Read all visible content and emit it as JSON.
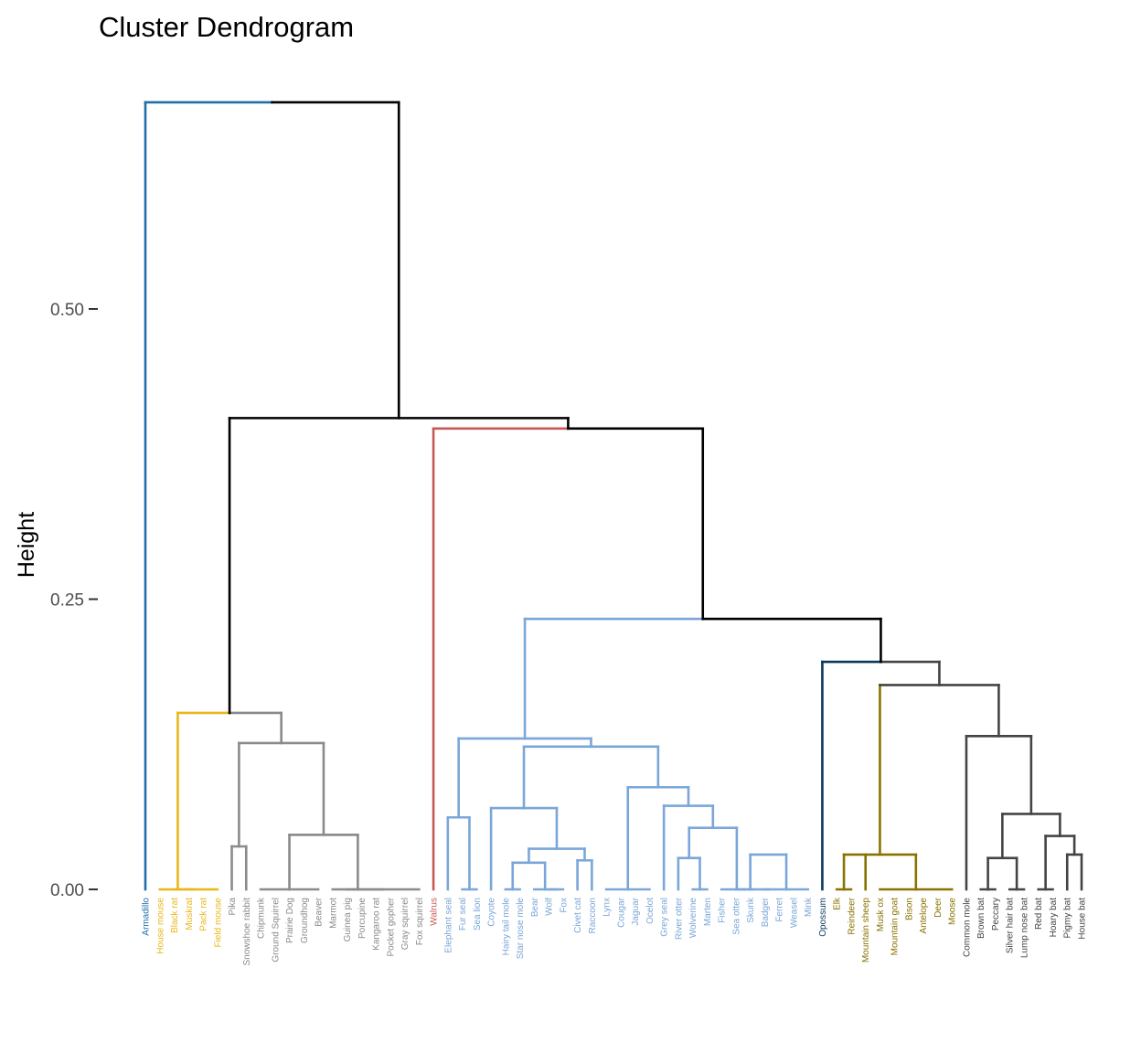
{
  "chart_data": {
    "type": "dendrogram",
    "title": "Cluster Dendrogram",
    "ylabel": "Height",
    "xlabel": "",
    "ylim": [
      0,
      0.68
    ],
    "yticks": [
      {
        "value": 0.0,
        "label": "0.00"
      },
      {
        "value": 0.25,
        "label": "0.25"
      },
      {
        "value": 0.5,
        "label": "0.50"
      }
    ],
    "colors": {
      "c1": "#1f6fa8",
      "c2": "#e8b81a",
      "c3": "#8a8a8a",
      "c4": "#c85a55",
      "c5": "#7aa6d8",
      "c6": "#0b3a5e",
      "c7": "#8a7200",
      "c8": "#444444",
      "root": "#000000"
    },
    "leaves": [
      {
        "label": "Armadillo",
        "cluster": "c1"
      },
      {
        "label": "House mouse",
        "cluster": "c2"
      },
      {
        "label": "Black rat",
        "cluster": "c2"
      },
      {
        "label": "Muskrat",
        "cluster": "c2"
      },
      {
        "label": "Pack rat",
        "cluster": "c2"
      },
      {
        "label": "Field mouse",
        "cluster": "c2"
      },
      {
        "label": "Pika",
        "cluster": "c3"
      },
      {
        "label": "Snowshoe rabbit",
        "cluster": "c3"
      },
      {
        "label": "Chipmunk",
        "cluster": "c3"
      },
      {
        "label": "Ground Squirrel",
        "cluster": "c3"
      },
      {
        "label": "Prairie Dog",
        "cluster": "c3"
      },
      {
        "label": "Groundhog",
        "cluster": "c3"
      },
      {
        "label": "Beaver",
        "cluster": "c3"
      },
      {
        "label": "Marmot",
        "cluster": "c3"
      },
      {
        "label": "Guinea pig",
        "cluster": "c3"
      },
      {
        "label": "Porcupine",
        "cluster": "c3"
      },
      {
        "label": "Kangaroo rat",
        "cluster": "c3"
      },
      {
        "label": "Pocket gopher",
        "cluster": "c3"
      },
      {
        "label": "Gray squirrel",
        "cluster": "c3"
      },
      {
        "label": "Fox squirrel",
        "cluster": "c3"
      },
      {
        "label": "Walrus",
        "cluster": "c4"
      },
      {
        "label": "Elephant seal",
        "cluster": "c5"
      },
      {
        "label": "Fur seal",
        "cluster": "c5"
      },
      {
        "label": "Sea lion",
        "cluster": "c5"
      },
      {
        "label": "Coyote",
        "cluster": "c5"
      },
      {
        "label": "Hairy tail mole",
        "cluster": "c5"
      },
      {
        "label": "Star nose mole",
        "cluster": "c5"
      },
      {
        "label": "Bear",
        "cluster": "c5"
      },
      {
        "label": "Wolf",
        "cluster": "c5"
      },
      {
        "label": "Fox",
        "cluster": "c5"
      },
      {
        "label": "Civet cat",
        "cluster": "c5"
      },
      {
        "label": "Raccoon",
        "cluster": "c5"
      },
      {
        "label": "Lynx",
        "cluster": "c5"
      },
      {
        "label": "Cougar",
        "cluster": "c5"
      },
      {
        "label": "Jaguar",
        "cluster": "c5"
      },
      {
        "label": "Ocelot",
        "cluster": "c5"
      },
      {
        "label": "Grey seal",
        "cluster": "c5"
      },
      {
        "label": "River otter",
        "cluster": "c5"
      },
      {
        "label": "Wolverine",
        "cluster": "c5"
      },
      {
        "label": "Marten",
        "cluster": "c5"
      },
      {
        "label": "Fisher",
        "cluster": "c5"
      },
      {
        "label": "Sea otter",
        "cluster": "c5"
      },
      {
        "label": "Skunk",
        "cluster": "c5"
      },
      {
        "label": "Badger",
        "cluster": "c5"
      },
      {
        "label": "Ferret",
        "cluster": "c5"
      },
      {
        "label": "Weasel",
        "cluster": "c5"
      },
      {
        "label": "Mink",
        "cluster": "c5"
      },
      {
        "label": "Opossum",
        "cluster": "c6"
      },
      {
        "label": "Elk",
        "cluster": "c7"
      },
      {
        "label": "Reindeer",
        "cluster": "c7"
      },
      {
        "label": "Mountain sheep",
        "cluster": "c7"
      },
      {
        "label": "Musk ox",
        "cluster": "c7"
      },
      {
        "label": "Mountain goat",
        "cluster": "c7"
      },
      {
        "label": "Bison",
        "cluster": "c7"
      },
      {
        "label": "Antelope",
        "cluster": "c7"
      },
      {
        "label": "Deer",
        "cluster": "c7"
      },
      {
        "label": "Moose",
        "cluster": "c7"
      },
      {
        "label": "Common mole",
        "cluster": "c8"
      },
      {
        "label": "Brown bat",
        "cluster": "c8"
      },
      {
        "label": "Peccary",
        "cluster": "c8"
      },
      {
        "label": "Silver hair bat",
        "cluster": "c8"
      },
      {
        "label": "Lump nose bat",
        "cluster": "c8"
      },
      {
        "label": "Red bat",
        "cluster": "c8"
      },
      {
        "label": "Hoary bat",
        "cluster": "c8"
      },
      {
        "label": "Pigmy bat",
        "cluster": "c8"
      },
      {
        "label": "House bat",
        "cluster": "c8"
      }
    ],
    "merges": [
      {
        "id": "m1",
        "h": 0.0,
        "children": [
          "Black rat",
          "Muskrat",
          "Pack rat",
          "Field mouse"
        ],
        "color": "c2"
      },
      {
        "id": "m2",
        "h": 0.0,
        "children": [
          "House mouse",
          "m1"
        ],
        "color": "c2"
      },
      {
        "id": "m3",
        "h": 0.037,
        "children": [
          "Pika",
          "Snowshoe rabbit"
        ],
        "color": "c3"
      },
      {
        "id": "m4",
        "h": 0.0,
        "children": [
          "Chipmunk",
          "Ground Squirrel",
          "Prairie Dog",
          "Groundhog",
          "Beaver"
        ],
        "color": "c3"
      },
      {
        "id": "m5",
        "h": 0.0,
        "children": [
          "Guinea pig",
          "Porcupine",
          "Kangaroo rat",
          "Pocket gopher",
          "Gray squirrel",
          "Fox squirrel"
        ],
        "color": "c3"
      },
      {
        "id": "m6",
        "h": 0.0,
        "children": [
          "Marmot",
          "m5"
        ],
        "color": "c3"
      },
      {
        "id": "m7",
        "h": 0.047,
        "children": [
          "m4",
          "m6"
        ],
        "color": "c3"
      },
      {
        "id": "m8",
        "h": 0.126,
        "children": [
          "m3",
          "m7"
        ],
        "color": "c3"
      },
      {
        "id": "m9",
        "h": 0.152,
        "children": [
          "m2",
          "m8"
        ],
        "color": "root"
      },
      {
        "id": "m10",
        "h": 0.0,
        "children": [
          "Fur seal",
          "Sea lion"
        ],
        "color": "c5"
      },
      {
        "id": "m11",
        "h": 0.062,
        "children": [
          "Elephant seal",
          "m10"
        ],
        "color": "c5"
      },
      {
        "id": "m12",
        "h": 0.0,
        "children": [
          "Hairy tail mole",
          "Star nose mole"
        ],
        "color": "c5"
      },
      {
        "id": "m13",
        "h": 0.0,
        "children": [
          "Wolf",
          "Fox"
        ],
        "color": "c5"
      },
      {
        "id": "m14",
        "h": 0.0,
        "children": [
          "Bear",
          "m13"
        ],
        "color": "c5"
      },
      {
        "id": "m15",
        "h": 0.023,
        "children": [
          "m12",
          "m14"
        ],
        "color": "c5"
      },
      {
        "id": "m16",
        "h": 0.025,
        "children": [
          "Civet cat",
          "Raccoon"
        ],
        "color": "c5"
      },
      {
        "id": "m17",
        "h": 0.035,
        "children": [
          "m15",
          "m16"
        ],
        "color": "c5"
      },
      {
        "id": "m18",
        "h": 0.07,
        "children": [
          "Coyote",
          "m17"
        ],
        "color": "c5"
      },
      {
        "id": "m19",
        "h": 0.0,
        "children": [
          "Lynx",
          "Cougar",
          "Jaguar",
          "Ocelot"
        ],
        "color": "c5"
      },
      {
        "id": "m20",
        "h": 0.0,
        "children": [
          "Wolverine",
          "Marten"
        ],
        "color": "c5"
      },
      {
        "id": "m21",
        "h": 0.027,
        "children": [
          "River otter",
          "m20"
        ],
        "color": "c5"
      },
      {
        "id": "m22",
        "h": 0.0,
        "children": [
          "Badger",
          "Ferret",
          "Weasel",
          "Mink"
        ],
        "color": "c5"
      },
      {
        "id": "m23",
        "h": 0.03,
        "children": [
          "Skunk",
          "m22"
        ],
        "color": "c5"
      },
      {
        "id": "m24",
        "h": 0.0,
        "children": [
          "Sea otter",
          "m23"
        ],
        "color": "c5"
      },
      {
        "id": "m25",
        "h": 0.0,
        "children": [
          "Fisher",
          "m24"
        ],
        "color": "c5"
      },
      {
        "id": "m26",
        "h": 0.053,
        "children": [
          "m21",
          "m25"
        ],
        "color": "c5"
      },
      {
        "id": "m27",
        "h": 0.072,
        "children": [
          "Grey seal",
          "m26"
        ],
        "color": "c5"
      },
      {
        "id": "m28",
        "h": 0.088,
        "children": [
          "m19",
          "m27"
        ],
        "color": "c5"
      },
      {
        "id": "m29",
        "h": 0.123,
        "children": [
          "m18",
          "m28"
        ],
        "color": "c5"
      },
      {
        "id": "m30",
        "h": 0.13,
        "children": [
          "m11",
          "m29"
        ],
        "color": "c5"
      },
      {
        "id": "m31",
        "h": 0.0,
        "children": [
          "Elk",
          "Reindeer"
        ],
        "color": "c7"
      },
      {
        "id": "m32",
        "h": 0.0,
        "children": [
          "Musk ox",
          "Mountain goat",
          "Bison",
          "Antelope",
          "Deer",
          "Moose"
        ],
        "color": "c7"
      },
      {
        "id": "m33",
        "h": 0.03,
        "children": [
          "m31",
          "Mountain sheep",
          "m32"
        ],
        "color": "c7"
      },
      {
        "id": "m34",
        "h": 0.0,
        "children": [
          "Brown bat",
          "Peccary"
        ],
        "color": "c8"
      },
      {
        "id": "m35",
        "h": 0.0,
        "children": [
          "Silver hair bat",
          "Lump nose bat"
        ],
        "color": "c8"
      },
      {
        "id": "m36",
        "h": 0.027,
        "children": [
          "m34",
          "m35"
        ],
        "color": "c8"
      },
      {
        "id": "m37",
        "h": 0.0,
        "children": [
          "Red bat",
          "Hoary bat"
        ],
        "color": "c8"
      },
      {
        "id": "m38",
        "h": 0.03,
        "children": [
          "Pigmy bat",
          "House bat"
        ],
        "color": "c8"
      },
      {
        "id": "m39",
        "h": 0.046,
        "children": [
          "m37",
          "m38"
        ],
        "color": "c8"
      },
      {
        "id": "m40",
        "h": 0.065,
        "children": [
          "m36",
          "m39"
        ],
        "color": "c8"
      },
      {
        "id": "m41",
        "h": 0.132,
        "children": [
          "Common mole",
          "m40"
        ],
        "color": "c8"
      },
      {
        "id": "m42",
        "h": 0.176,
        "children": [
          "m33",
          "m41"
        ],
        "color": "c8"
      },
      {
        "id": "m43",
        "h": 0.196,
        "children": [
          "Opossum",
          "m42"
        ],
        "color": "root"
      },
      {
        "id": "m44",
        "h": 0.233,
        "children": [
          "m30",
          "m43"
        ],
        "color": "root"
      },
      {
        "id": "m45",
        "h": 0.397,
        "children": [
          "Walrus",
          "m44"
        ],
        "color": "root"
      },
      {
        "id": "m46",
        "h": 0.406,
        "children": [
          "m9",
          "m45"
        ],
        "color": "root"
      },
      {
        "id": "m47",
        "h": 0.678,
        "children": [
          "Armadillo",
          "m46"
        ],
        "color": "root"
      }
    ]
  }
}
